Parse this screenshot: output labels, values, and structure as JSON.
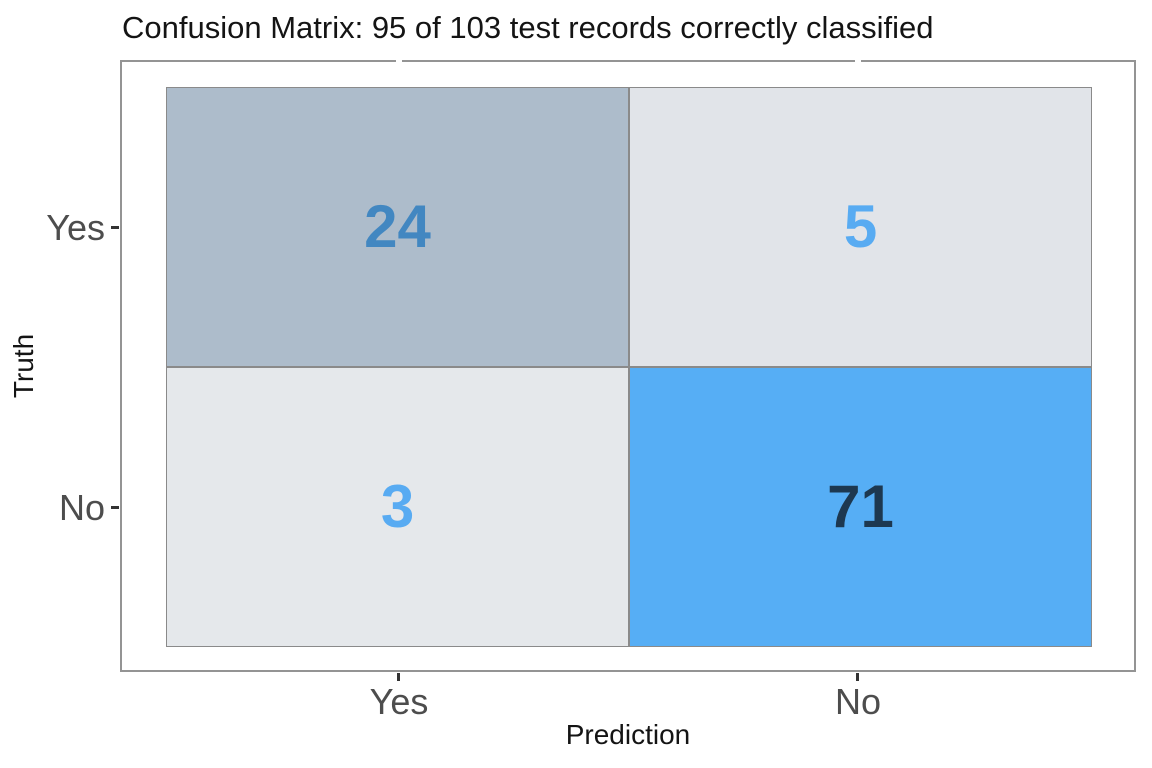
{
  "chart_data": {
    "type": "heatmap",
    "title": "Confusion Matrix: 95 of 103 test records correctly classified",
    "xlabel": "Prediction",
    "ylabel": "Truth",
    "x_categories": [
      "Yes",
      "No"
    ],
    "y_categories": [
      "Yes",
      "No"
    ],
    "legend_position": "none",
    "grid": false,
    "cells": [
      {
        "truth": "Yes",
        "prediction": "Yes",
        "count": 24,
        "fill": "#adbccb",
        "text_color": "#4287c1"
      },
      {
        "truth": "Yes",
        "prediction": "No",
        "count": 5,
        "fill": "#e1e4e9",
        "text_color": "#58abf2"
      },
      {
        "truth": "No",
        "prediction": "Yes",
        "count": 3,
        "fill": "#e5e8eb",
        "text_color": "#58abf2"
      },
      {
        "truth": "No",
        "prediction": "No",
        "count": 71,
        "fill": "#56aef5",
        "text_color": "#1d3850"
      }
    ],
    "colors": {
      "panel_border": "#949494",
      "cell_border": "#8a8a8a",
      "axis_text": "#4d4d4d",
      "axis_title_text": "#141414",
      "title_text": "#141414",
      "tick_mark": "#333333",
      "background": "#ffffff"
    }
  }
}
